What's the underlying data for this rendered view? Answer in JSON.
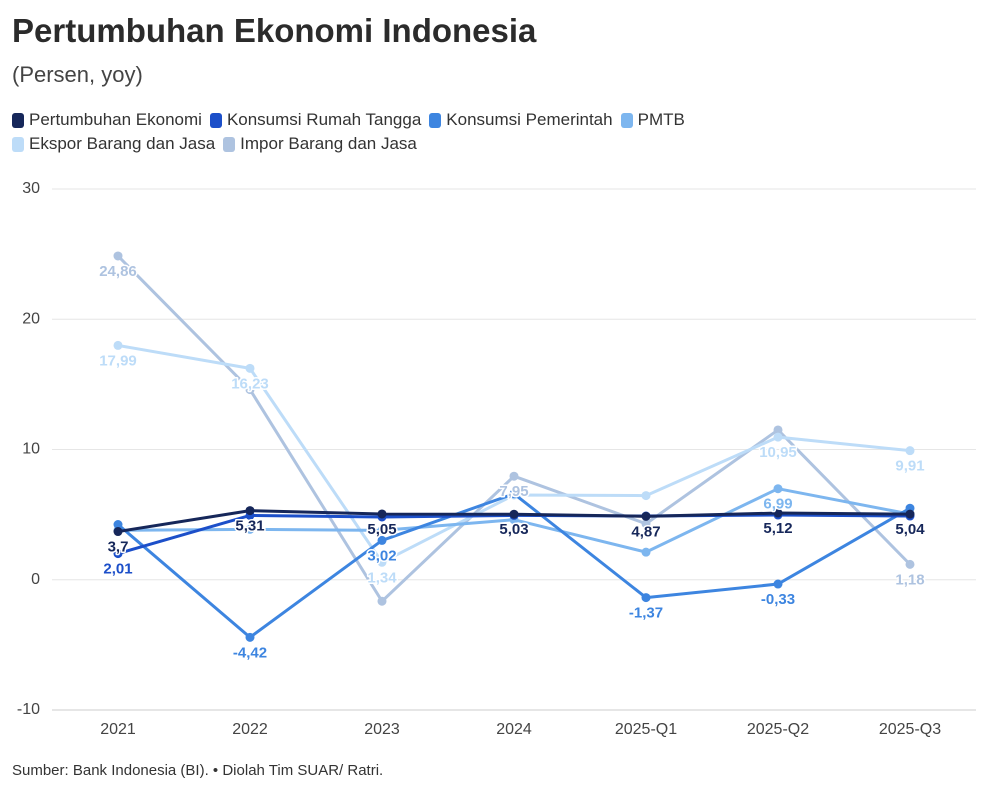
{
  "chart_data": {
    "type": "line",
    "title": "Pertumbuhan Ekonomi Indonesia",
    "subtitle": "(Persen, yoy)",
    "source": "Sumber: Bank Indonesia (BI). • Diolah Tim SUAR/ Ratri.",
    "categories": [
      "2021",
      "2022",
      "2023",
      "2024",
      "2025-Q1",
      "2025-Q2",
      "2025-Q3"
    ],
    "ylim": [
      -10,
      30
    ],
    "yticks": [
      -10,
      0,
      10,
      20,
      30
    ],
    "grid": true,
    "series": [
      {
        "name": "Pertumbuhan Ekonomi",
        "color": "#16275a",
        "values": [
          3.7,
          5.31,
          5.05,
          5.03,
          4.87,
          5.12,
          5.04
        ],
        "value_labels": [
          "3,7",
          "5,31",
          "5,05",
          "5,03",
          "4,87",
          "5,12",
          "5,04"
        ]
      },
      {
        "name": "Konsumsi Rumah Tangga",
        "color": "#1c4fc9",
        "values": [
          2.01,
          4.94,
          4.82,
          4.94,
          4.89,
          4.97,
          4.89
        ],
        "value_labels": [
          "2,01",
          null,
          null,
          null,
          null,
          null,
          null
        ]
      },
      {
        "name": "Konsumsi Pemerintah",
        "color": "#3d85e0",
        "values": [
          4.24,
          -4.42,
          3.02,
          6.6,
          -1.37,
          -0.33,
          5.49
        ],
        "value_labels": [
          null,
          "-4,42",
          "3,02",
          null,
          "-1,37",
          "-0,33",
          null
        ]
      },
      {
        "name": "PMTB",
        "color": "#7db6ef",
        "values": [
          3.8,
          3.87,
          3.79,
          4.61,
          2.12,
          6.99,
          5.04
        ],
        "value_labels": [
          null,
          null,
          null,
          null,
          null,
          "6,99",
          null
        ]
      },
      {
        "name": "Ekspor Barang dan Jasa",
        "color": "#bddcf8",
        "values": [
          17.99,
          16.23,
          1.34,
          6.51,
          6.46,
          10.95,
          9.91
        ],
        "value_labels": [
          "17,99",
          "16,23",
          "1,34",
          null,
          null,
          "10,95",
          "9,91"
        ]
      },
      {
        "name": "Impor Barang dan Jasa",
        "color": "#aec3e0",
        "values": [
          24.86,
          14.6,
          -1.65,
          7.95,
          4.3,
          11.5,
          1.18
        ],
        "value_labels": [
          "24,86",
          null,
          null,
          "7,95",
          null,
          null,
          "1,18"
        ]
      }
    ]
  }
}
